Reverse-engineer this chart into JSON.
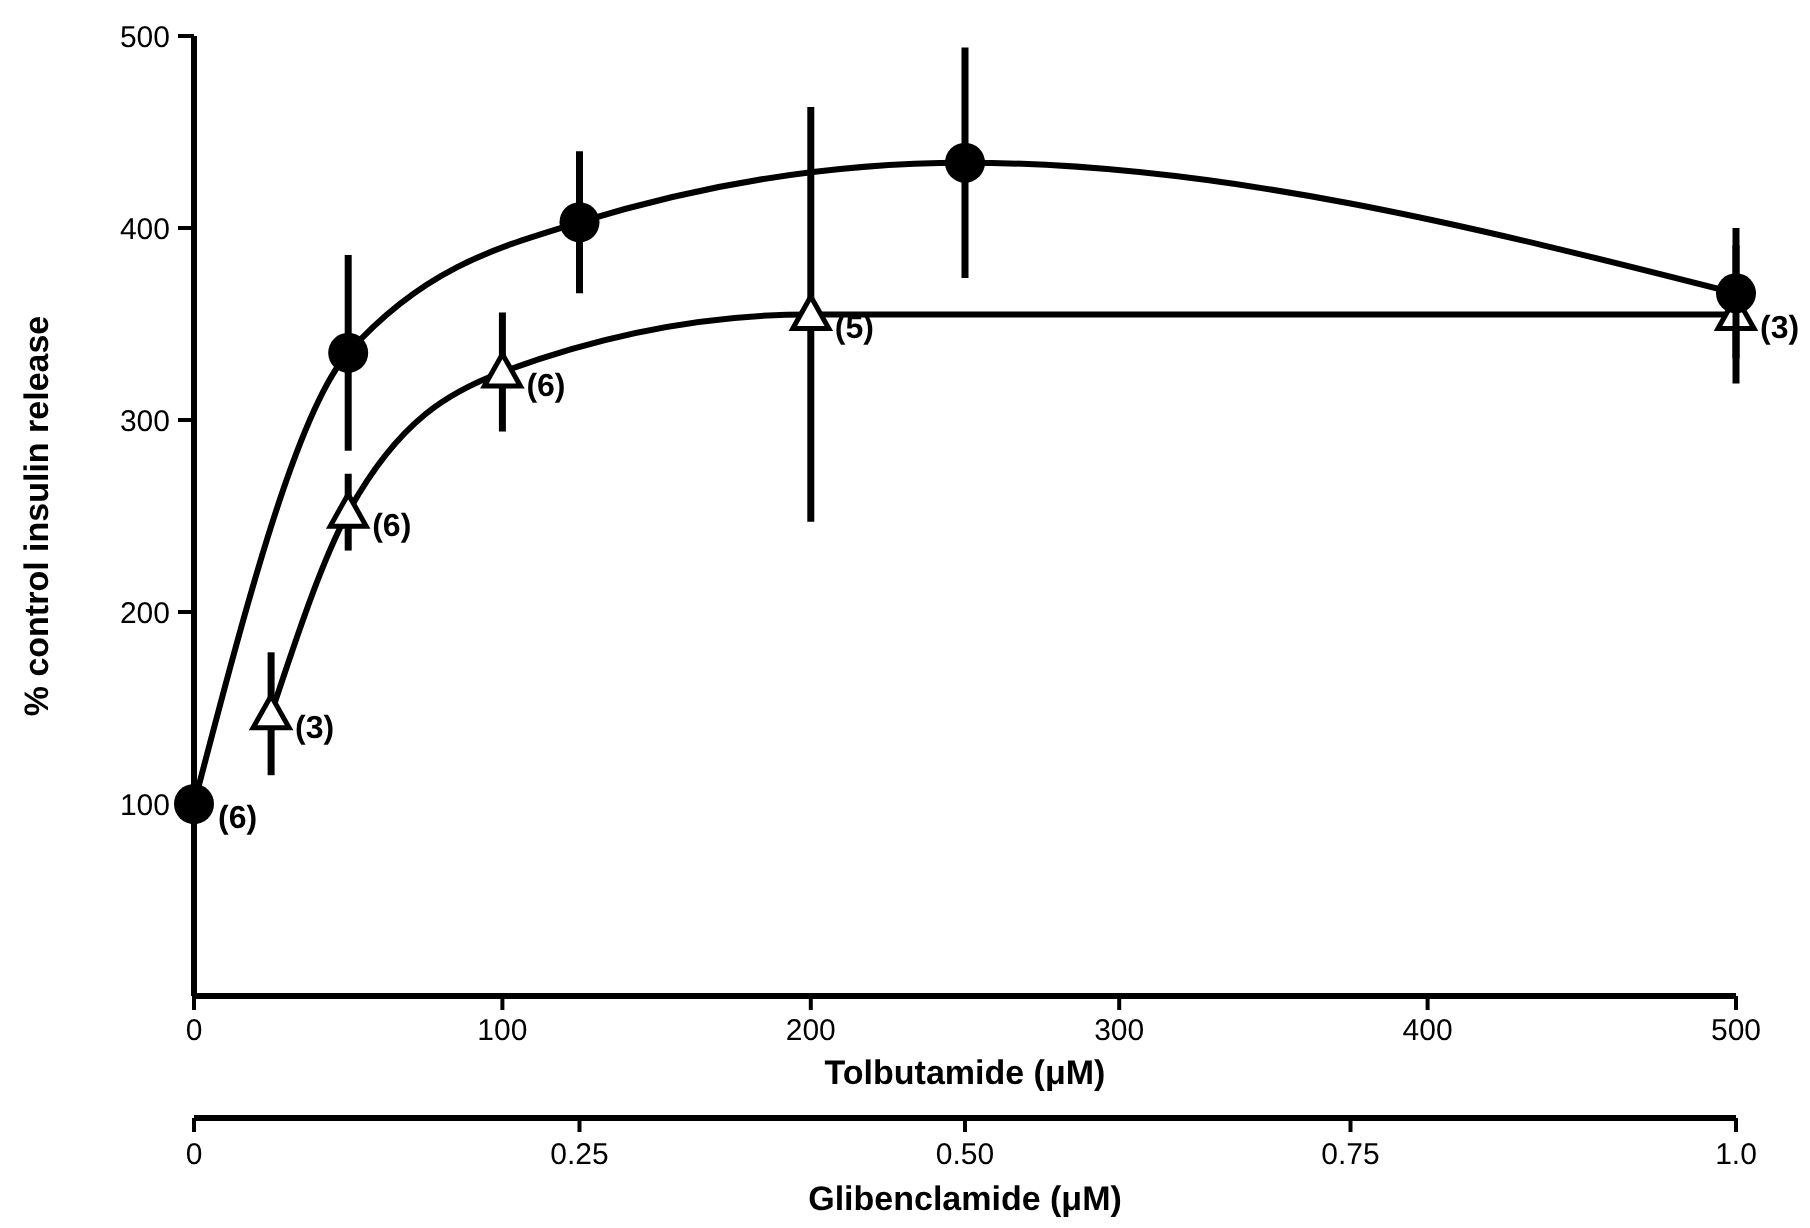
{
  "chart_data": {
    "type": "line",
    "xlabel": "Tolbutamide (μM)",
    "x2label": "Glibenclamide (μM)",
    "ylabel": "% control insulin release",
    "xlim": [
      0,
      500
    ],
    "xticks": [
      0,
      100,
      200,
      300,
      400,
      500
    ],
    "x2lim": [
      0,
      1.0
    ],
    "x2ticks": [
      0,
      0.25,
      {
        "value": 0.5,
        "label": "0.50"
      },
      0.75,
      {
        "value": 1.0,
        "label": "1.0"
      }
    ],
    "ylim": [
      0,
      500
    ],
    "yticks": [
      100,
      200,
      300,
      400,
      500
    ],
    "series": [
      {
        "color": "#000000",
        "marker": "triangle",
        "axis": "x2",
        "x": [
          0.05,
          0.1,
          0.2,
          0.4,
          1.0
        ],
        "values": [
          147,
          252,
          325,
          355,
          355
        ],
        "errors": [
          32,
          20,
          31,
          108,
          36
        ]
      },
      {
        "color": "#000000",
        "marker": "circle",
        "x": [
          0,
          50,
          125,
          250,
          500
        ],
        "values": [
          100,
          335,
          403,
          434,
          366
        ],
        "errors": [
          null,
          51,
          37,
          60,
          34
        ]
      }
    ],
    "annotations": [
      {
        "text": "(6)",
        "x": 0,
        "y": 100
      },
      {
        "text": "(3)",
        "x": 25,
        "y": 147
      },
      {
        "text": "(6)",
        "x": 50,
        "y": 252
      },
      {
        "text": "(6)",
        "x": 100,
        "y": 325
      },
      {
        "text": "(5)",
        "x": 200,
        "y": 355
      },
      {
        "text": "(3)",
        "x": 500,
        "y": 355
      }
    ]
  }
}
